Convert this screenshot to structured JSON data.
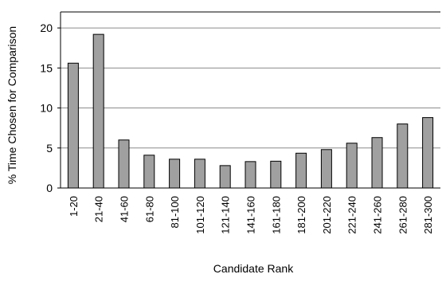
{
  "chart_data": {
    "type": "bar",
    "title": "",
    "xlabel": "Candidate Rank",
    "ylabel": "% Time Chosen for Comparison",
    "categories": [
      "1-20",
      "21-40",
      "41-60",
      "61-80",
      "81-100",
      "101-120",
      "121-140",
      "141-160",
      "161-180",
      "181-200",
      "201-220",
      "221-240",
      "241-260",
      "261-280",
      "281-300"
    ],
    "values": [
      15.6,
      19.2,
      6.0,
      4.1,
      3.6,
      3.6,
      2.8,
      3.3,
      3.35,
      4.35,
      4.8,
      5.6,
      6.3,
      8.0,
      8.8
    ],
    "ylim": [
      0,
      22
    ],
    "yticks": [
      "0",
      "5",
      "10",
      "15",
      "20"
    ],
    "grid": true,
    "colors": {
      "bar": "#a0a0a0",
      "bar_stroke": "#000000",
      "grid": "#8c8c8c",
      "axis": "#000000"
    }
  }
}
